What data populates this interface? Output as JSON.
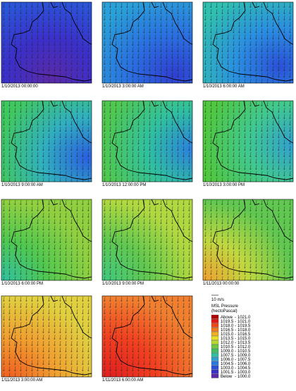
{
  "panels": [
    {
      "label": "1/10/2013 00:00:00"
    },
    {
      "label": "1/10/2013 3:00:00 AM"
    },
    {
      "label": "1/10/2013 6:00:00 AM"
    },
    {
      "label": "1/10/2013 9:00:00 AM"
    },
    {
      "label": "1/10/2013 12:00:00 PM"
    },
    {
      "label": "1/10/2013 3:00:00 PM"
    },
    {
      "label": "1/10/2013 6:00:00 PM"
    },
    {
      "label": "1/10/2013 9:00:00 PM"
    },
    {
      "label": "1/11/2013 00:00:00"
    },
    {
      "label": "1/11/2013 3:00:00 AM"
    },
    {
      "label": "1/11/2013 6:00:00 AM"
    }
  ],
  "legend": {
    "scale": "10 m/s",
    "title": "MSL Pressure",
    "subtitle": "(hectoPascal)",
    "entries": [
      {
        "from": "Above",
        "to": "1021.0"
      },
      {
        "from": "1019.5",
        "to": "1021.0"
      },
      {
        "from": "1018.0",
        "to": "1019.5"
      },
      {
        "from": "1016.5",
        "to": "1018.0"
      },
      {
        "from": "1015.0",
        "to": "1016.5"
      },
      {
        "from": "1013.5",
        "to": "1015.0"
      },
      {
        "from": "1012.0",
        "to": "1013.5"
      },
      {
        "from": "1010.5",
        "to": "1012.0"
      },
      {
        "from": "1009.0",
        "to": "1010.5"
      },
      {
        "from": "1007.5",
        "to": "1009.0"
      },
      {
        "from": "1006.0",
        "to": "1007.5"
      },
      {
        "from": "1004.5",
        "to": "1006.0"
      },
      {
        "from": "1003.0",
        "to": "1004.5"
      },
      {
        "from": "1001.5",
        "to": "1003.0"
      },
      {
        "from": "Below",
        "to": "1000.0"
      }
    ]
  }
}
